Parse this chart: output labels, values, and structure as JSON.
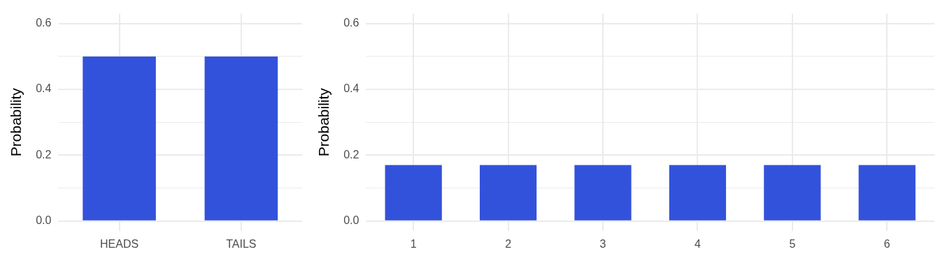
{
  "chart_data": [
    {
      "type": "bar",
      "ylabel": "Probability",
      "categories": [
        "HEADS",
        "TAILS"
      ],
      "values": [
        0.5,
        0.5
      ],
      "color": "#3352db",
      "ylim": [
        -0.03,
        0.63
      ],
      "yticks": [
        {
          "value": 0,
          "label": "0.0"
        },
        {
          "value": 0.1,
          "label": null
        },
        {
          "value": 0.2,
          "label": "0.2"
        },
        {
          "value": 0.3,
          "label": null
        },
        {
          "value": 0.4,
          "label": "0.4"
        },
        {
          "value": 0.5,
          "label": null
        },
        {
          "value": 0.6,
          "label": "0.6"
        }
      ],
      "grid": true
    },
    {
      "type": "bar",
      "ylabel": "Probability",
      "categories": [
        "1",
        "2",
        "3",
        "4",
        "5",
        "6"
      ],
      "values": [
        0.17,
        0.17,
        0.17,
        0.17,
        0.17,
        0.17
      ],
      "color": "#3352db",
      "ylim": [
        -0.03,
        0.63
      ],
      "yticks": [
        {
          "value": 0,
          "label": "0.0"
        },
        {
          "value": 0.1,
          "label": null
        },
        {
          "value": 0.2,
          "label": "0.2"
        },
        {
          "value": 0.3,
          "label": null
        },
        {
          "value": 0.4,
          "label": "0.4"
        },
        {
          "value": 0.5,
          "label": null
        },
        {
          "value": 0.6,
          "label": "0.6"
        }
      ],
      "grid": true
    }
  ]
}
